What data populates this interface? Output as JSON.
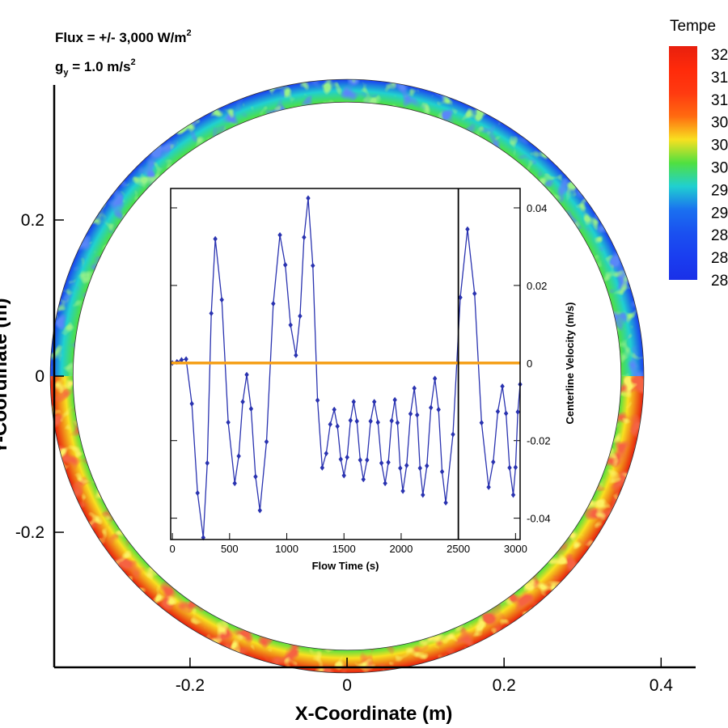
{
  "chart_data": [
    {
      "type": "contour",
      "annotations": [
        [
          "Flux = +/- 3,000 W/m",
          "2"
        ],
        [
          "g",
          "y",
          " = 1.0 m/s",
          "2"
        ]
      ],
      "xlabel": "X-Coordinate (m)",
      "ylabel": "Y-Coordinate (m)",
      "xlim": [
        -0.373,
        0.444
      ],
      "ylim": [
        -0.373,
        0.373
      ],
      "xticks": [
        -0.2,
        0,
        0.2,
        0.4
      ],
      "yticks": [
        -0.2,
        0,
        0.2
      ],
      "ring": {
        "inner_radius": 0.349,
        "outer_radius": 0.378
      },
      "colorbar": {
        "title": "Tempe",
        "labels": [
          "32",
          "31",
          "31",
          "30",
          "30",
          "30",
          "29",
          "29",
          "28",
          "28",
          "28"
        ],
        "colors": [
          "#e8200e",
          "#ff2a0a",
          "#ff3a10",
          "#ff6a10",
          "#f8e020",
          "#50e040",
          "#20d0d0",
          "#1a70f0",
          "#1a50f0",
          "#1a3ef0",
          "#1a30e8"
        ]
      }
    },
    {
      "type": "line",
      "xlabel": "Flow Time (s)",
      "ylabel": "Centerline Velocity (m/s)",
      "xlim": [
        -15,
        3040
      ],
      "ylim": [
        -0.0455,
        0.045
      ],
      "xticks": [
        0,
        500,
        1000,
        1500,
        2000,
        2500,
        3000
      ],
      "yticks": [
        -0.04,
        -0.02,
        0,
        0.02,
        0.04
      ],
      "reference_lines": [
        {
          "axis": "y",
          "value": 0,
          "color": "#f5a01a"
        },
        {
          "axis": "x",
          "value": 2500,
          "color": "#000000"
        }
      ],
      "x": [
        0,
        40,
        80,
        120,
        170,
        220,
        270,
        305,
        340,
        375,
        432,
        488,
        545,
        580,
        615,
        650,
        688,
        727,
        765,
        823,
        882,
        940,
        987,
        1033,
        1080,
        1116,
        1151,
        1187,
        1228,
        1269,
        1310,
        1345,
        1380,
        1415,
        1443,
        1472,
        1500,
        1528,
        1557,
        1585,
        1613,
        1642,
        1670,
        1702,
        1733,
        1765,
        1797,
        1828,
        1860,
        1888,
        1917,
        1945,
        1968,
        1992,
        2015,
        2048,
        2082,
        2115,
        2140,
        2165,
        2190,
        2225,
        2260,
        2295,
        2327,
        2358,
        2390,
        2453,
        2517,
        2580,
        2642,
        2703,
        2765,
        2805,
        2845,
        2885,
        2917,
        2948,
        2980,
        3000,
        3020,
        3040
      ],
      "series": [
        {
          "color": "#2a33b0",
          "values": [
            0,
            0.0003,
            0.0008,
            0.001,
            -0.0105,
            -0.0335,
            -0.045,
            -0.0258,
            0.0128,
            0.032,
            0.0163,
            -0.0153,
            -0.031,
            -0.024,
            -0.01,
            -0.003,
            -0.0118,
            -0.0293,
            -0.038,
            -0.0203,
            0.0153,
            0.033,
            0.0253,
            0.0098,
            0.002,
            0.0121,
            0.0324,
            0.0425,
            0.0251,
            -0.0096,
            -0.027,
            -0.0233,
            -0.0158,
            -0.012,
            -0.0163,
            -0.0248,
            -0.029,
            -0.0243,
            -0.0148,
            -0.01,
            -0.015,
            -0.025,
            -0.03,
            -0.025,
            -0.015,
            -0.01,
            -0.0153,
            -0.0258,
            -0.031,
            -0.0256,
            -0.0149,
            -0.0095,
            -0.0154,
            -0.0271,
            -0.033,
            -0.0264,
            -0.0131,
            -0.0065,
            -0.0134,
            -0.0271,
            -0.034,
            -0.0265,
            -0.0115,
            -0.004,
            -0.012,
            -0.028,
            -0.036,
            -0.0184,
            0.0169,
            0.0345,
            0.0179,
            -0.0154,
            -0.032,
            -0.0255,
            -0.0125,
            -0.006,
            -0.013,
            -0.027,
            -0.034,
            -0.0269,
            -0.0126,
            -0.0055
          ]
        }
      ]
    }
  ]
}
